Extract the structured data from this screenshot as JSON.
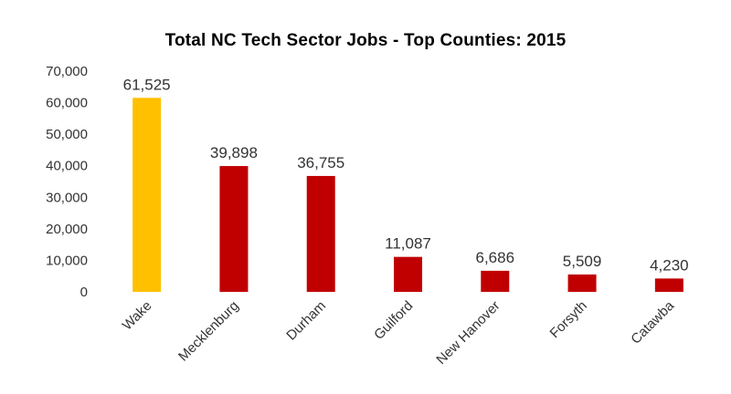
{
  "chart_data": {
    "type": "bar",
    "title": "Total NC Tech Sector Jobs - Top Counties: 2015",
    "xlabel": "",
    "ylabel": "",
    "categories": [
      "Wake",
      "Mecklenburg",
      "Durham",
      "Guilford",
      "New Hanover",
      "Forsyth",
      "Catawba"
    ],
    "values": [
      61525,
      39898,
      36755,
      11087,
      6686,
      5509,
      4230
    ],
    "value_labels": [
      "61,525",
      "39,898",
      "36,755",
      "11,087",
      "6,686",
      "5,509",
      "4,230"
    ],
    "ylim": [
      0,
      70000
    ],
    "y_ticks": [
      0,
      10000,
      20000,
      30000,
      40000,
      50000,
      60000,
      70000
    ],
    "y_tick_labels": [
      "0",
      "10,000",
      "20,000",
      "30,000",
      "40,000",
      "50,000",
      "60,000",
      "70,000"
    ],
    "grid": false,
    "legend": "none",
    "colors": {
      "highlight": "#FFC000",
      "default": "#C00000"
    },
    "highlight_index": 0
  }
}
